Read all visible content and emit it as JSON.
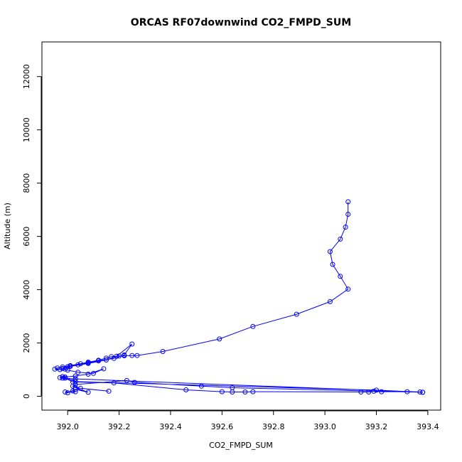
{
  "chart_data": {
    "type": "line",
    "title": "ORCAS RF07downwind CO2_FMPD_SUM",
    "xlabel": "CO2_FMPD_SUM",
    "ylabel": "Altitude (m)",
    "xlim": [
      391.9,
      393.45
    ],
    "ylim": [
      -520,
      13300
    ],
    "xticks": [
      392.0,
      392.2,
      392.4,
      392.6,
      392.8,
      393.0,
      393.2,
      393.4
    ],
    "xtick_labels": [
      "392.0",
      "392.2",
      "392.4",
      "392.6",
      "392.8",
      "393.0",
      "393.2",
      "393.4"
    ],
    "yticks": [
      0,
      2000,
      4000,
      6000,
      8000,
      10000,
      12000
    ],
    "ytick_labels": [
      "0",
      "2000",
      "4000",
      "6000",
      "8000",
      "10000",
      "12000"
    ],
    "grid": false,
    "color": "#0000ff",
    "series": [
      {
        "x": [
          393.09,
          393.09,
          393.08,
          393.06,
          393.02,
          393.03,
          393.06,
          393.09,
          393.02,
          392.89,
          392.72,
          392.59,
          392.37,
          392.27,
          392.25,
          392.22,
          392.2,
          392.17,
          392.15,
          392.12,
          392.08,
          392.05,
          392.01,
          391.98,
          391.96,
          391.95,
          391.97,
          391.99,
          392.01,
          392.08,
          392.15,
          392.19,
          392.25,
          392.22,
          392.18,
          392.12,
          392.08,
          392.04,
          392.0,
          391.98,
          392.0,
          392.04,
          392.1,
          392.14,
          392.08,
          392.03,
          391.99,
          391.97,
          391.98,
          392.03,
          393.37,
          393.38,
          393.32,
          393.22,
          393.19,
          393.17,
          393.14,
          392.72,
          392.69,
          392.64,
          392.6,
          392.46,
          392.18,
          392.02,
          391.99,
          391.98,
          392.03,
          393.2,
          393.38,
          392.64,
          392.52,
          392.26,
          392.23,
          392.03,
          392.02,
          392.05,
          392.16,
          392.03,
          392.08,
          392.03,
          392.0,
          391.99,
          392.03,
          392.02
        ],
        "y": [
          7300,
          6830,
          6350,
          5900,
          5430,
          4950,
          4500,
          4020,
          3550,
          3080,
          2620,
          2150,
          1680,
          1530,
          1530,
          1520,
          1510,
          1490,
          1430,
          1350,
          1280,
          1220,
          1150,
          1100,
          1060,
          1020,
          1000,
          1020,
          1120,
          1230,
          1360,
          1500,
          1960,
          1550,
          1420,
          1330,
          1260,
          1180,
          1110,
          1040,
          980,
          900,
          860,
          1030,
          830,
          760,
          720,
          700,
          680,
          650,
          160,
          150,
          170,
          170,
          190,
          160,
          160,
          170,
          160,
          160,
          170,
          240,
          500,
          540,
          680,
          740,
          550,
          230,
          150,
          320,
          380,
          520,
          590,
          440,
          380,
          300,
          190,
          320,
          150,
          260,
          130,
          160,
          170,
          200
        ]
      }
    ]
  }
}
